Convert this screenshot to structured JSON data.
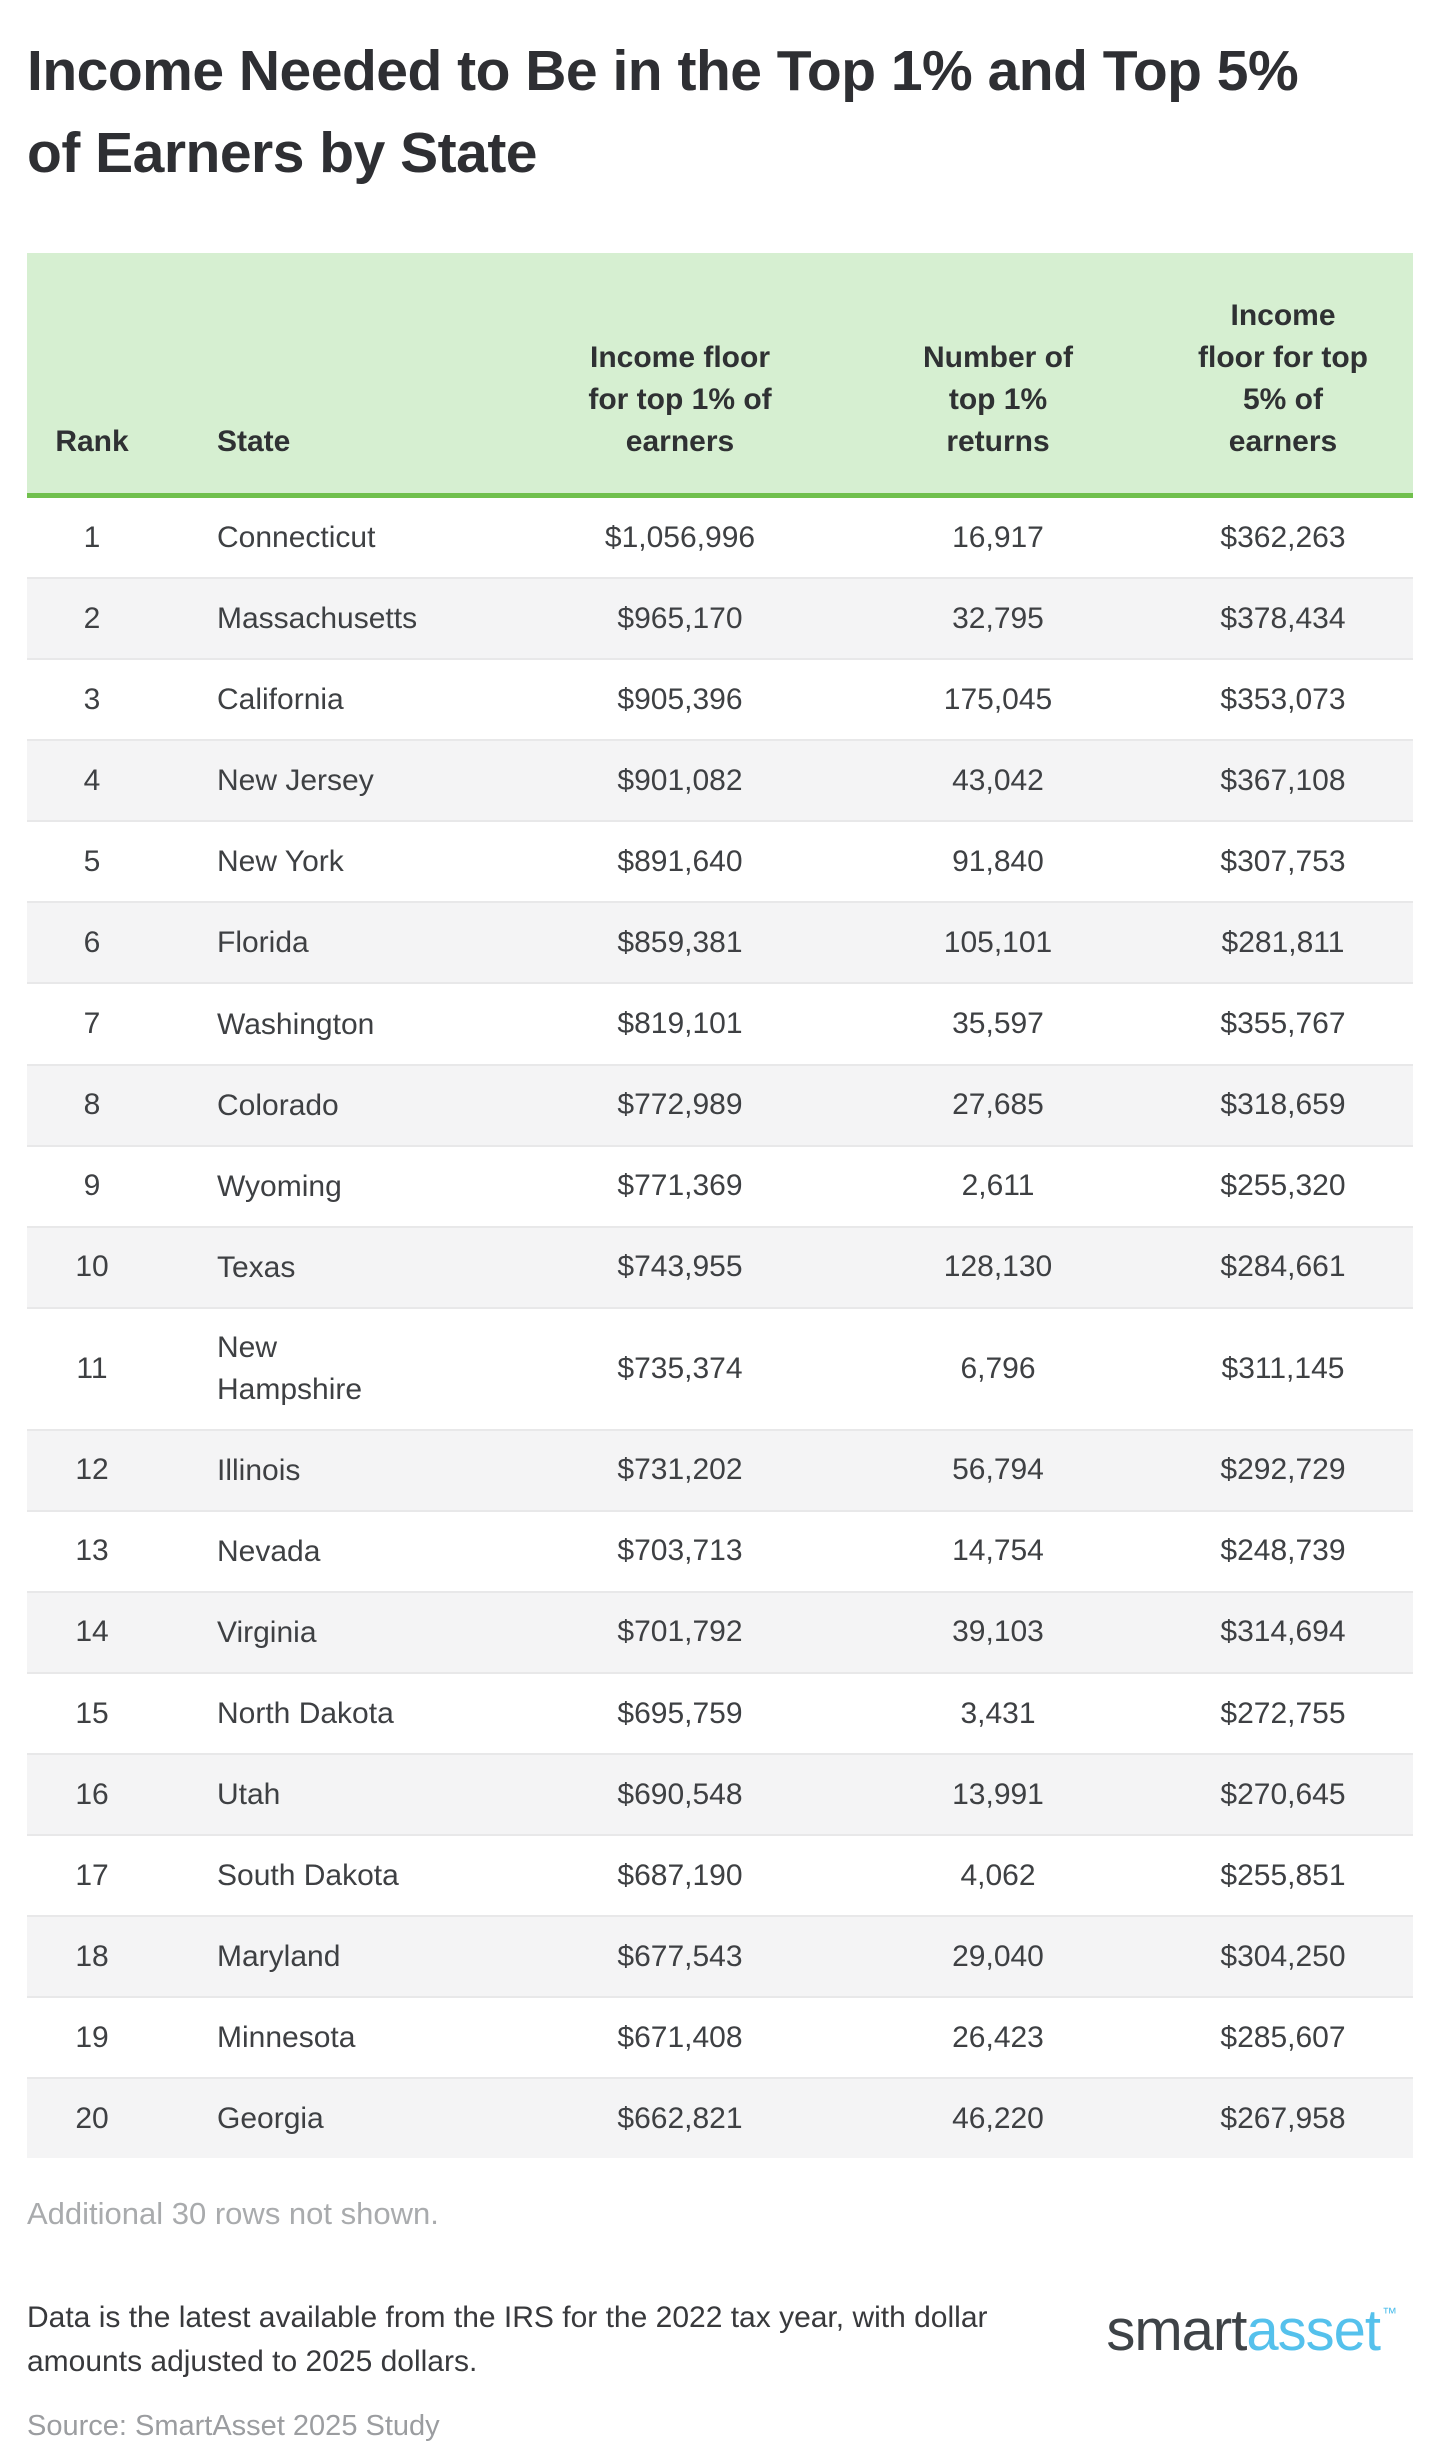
{
  "ui": {
    "title": "Income Needed to Be in the Top 1% and Top 5%\nof Earners by State",
    "header_display": [
      "Rank",
      "State",
      "Income floor\nfor top 1% of\nearners",
      "Number of\ntop 1%\nreturns",
      "Income\nfloor for top\n5% of\nearners"
    ],
    "additional_note": "Additional 30 rows not shown.",
    "footnote": "Data is the latest available from the IRS for the 2022 tax year, with dollar\namounts adjusted to 2025 dollars.",
    "source": "Source: SmartAsset 2025 Study",
    "logo": {
      "part1": "smart",
      "part2": "asset",
      "tm": "™"
    },
    "colors": {
      "header_bg": "#d6efd1",
      "header_rule_green": "#70c04d",
      "row_stripe": "#f4f4f5",
      "row_separator": "#e8e8e9",
      "logo_blue": "#55c1ec",
      "logo_dark": "#3e4347",
      "muted_text": "#a9abad"
    }
  },
  "chart_data": {
    "type": "table",
    "title": "Income Needed to Be in the Top 1% and Top 5% of Earners by State",
    "columns": [
      "Rank",
      "State",
      "Income floor for top 1% of earners",
      "Number of top 1% returns",
      "Income floor for top 5% of earners"
    ],
    "rows": [
      [
        "1",
        "Connecticut",
        "$1,056,996",
        "16,917",
        "$362,263"
      ],
      [
        "2",
        "Massachusetts",
        "$965,170",
        "32,795",
        "$378,434"
      ],
      [
        "3",
        "California",
        "$905,396",
        "175,045",
        "$353,073"
      ],
      [
        "4",
        "New Jersey",
        "$901,082",
        "43,042",
        "$367,108"
      ],
      [
        "5",
        "New York",
        "$891,640",
        "91,840",
        "$307,753"
      ],
      [
        "6",
        "Florida",
        "$859,381",
        "105,101",
        "$281,811"
      ],
      [
        "7",
        "Washington",
        "$819,101",
        "35,597",
        "$355,767"
      ],
      [
        "8",
        "Colorado",
        "$772,989",
        "27,685",
        "$318,659"
      ],
      [
        "9",
        "Wyoming",
        "$771,369",
        "2,611",
        "$255,320"
      ],
      [
        "10",
        "Texas",
        "$743,955",
        "128,130",
        "$284,661"
      ],
      [
        "11",
        "New Hampshire",
        "$735,374",
        "6,796",
        "$311,145"
      ],
      [
        "12",
        "Illinois",
        "$731,202",
        "56,794",
        "$292,729"
      ],
      [
        "13",
        "Nevada",
        "$703,713",
        "14,754",
        "$248,739"
      ],
      [
        "14",
        "Virginia",
        "$701,792",
        "39,103",
        "$314,694"
      ],
      [
        "15",
        "North Dakota",
        "$695,759",
        "3,431",
        "$272,755"
      ],
      [
        "16",
        "Utah",
        "$690,548",
        "13,991",
        "$270,645"
      ],
      [
        "17",
        "South Dakota",
        "$687,190",
        "4,062",
        "$255,851"
      ],
      [
        "18",
        "Maryland",
        "$677,543",
        "29,040",
        "$304,250"
      ],
      [
        "19",
        "Minnesota",
        "$671,408",
        "26,423",
        "$285,607"
      ],
      [
        "20",
        "Georgia",
        "$662,821",
        "46,220",
        "$267,958"
      ]
    ],
    "notes": {
      "rows_not_shown": 30,
      "source": "SmartAsset 2025 Study"
    }
  }
}
